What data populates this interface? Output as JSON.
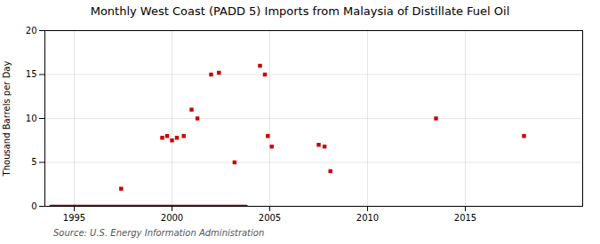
{
  "chart_data": {
    "type": "scatter",
    "title": "Monthly West Coast (PADD 5) Imports from Malaysia of Distillate Fuel Oil",
    "ylabel": "Thousand Barrels per Day",
    "source": "Source: U.S. Energy Information Administration",
    "x": [
      1997.4,
      1999.5,
      1999.75,
      2000.0,
      2000.25,
      2000.6,
      2001.0,
      2001.3,
      2002.0,
      2002.4,
      2003.2,
      2004.5,
      2004.75,
      2004.9,
      2005.1,
      2007.5,
      2007.8,
      2008.1,
      2013.5,
      2018.0
    ],
    "values": [
      2.0,
      7.8,
      8.0,
      7.5,
      7.8,
      8.0,
      11.0,
      10.0,
      15.0,
      15.2,
      5.0,
      16.0,
      15.0,
      8.0,
      6.8,
      7.0,
      6.8,
      4.0,
      10.0,
      8.0
    ],
    "color": "#cc0000",
    "marker": "square",
    "zero_line": {
      "x": [
        1993.8,
        2003.8
      ],
      "y": [
        0,
        0
      ],
      "color": "#8b0000"
    },
    "xlim": [
      1993.5,
      2021
    ],
    "ylim": [
      0,
      20
    ],
    "xticks": [
      1995,
      2000,
      2005,
      2010,
      2015
    ],
    "yticks": [
      0,
      5,
      10,
      15,
      20
    ],
    "grid": true
  }
}
